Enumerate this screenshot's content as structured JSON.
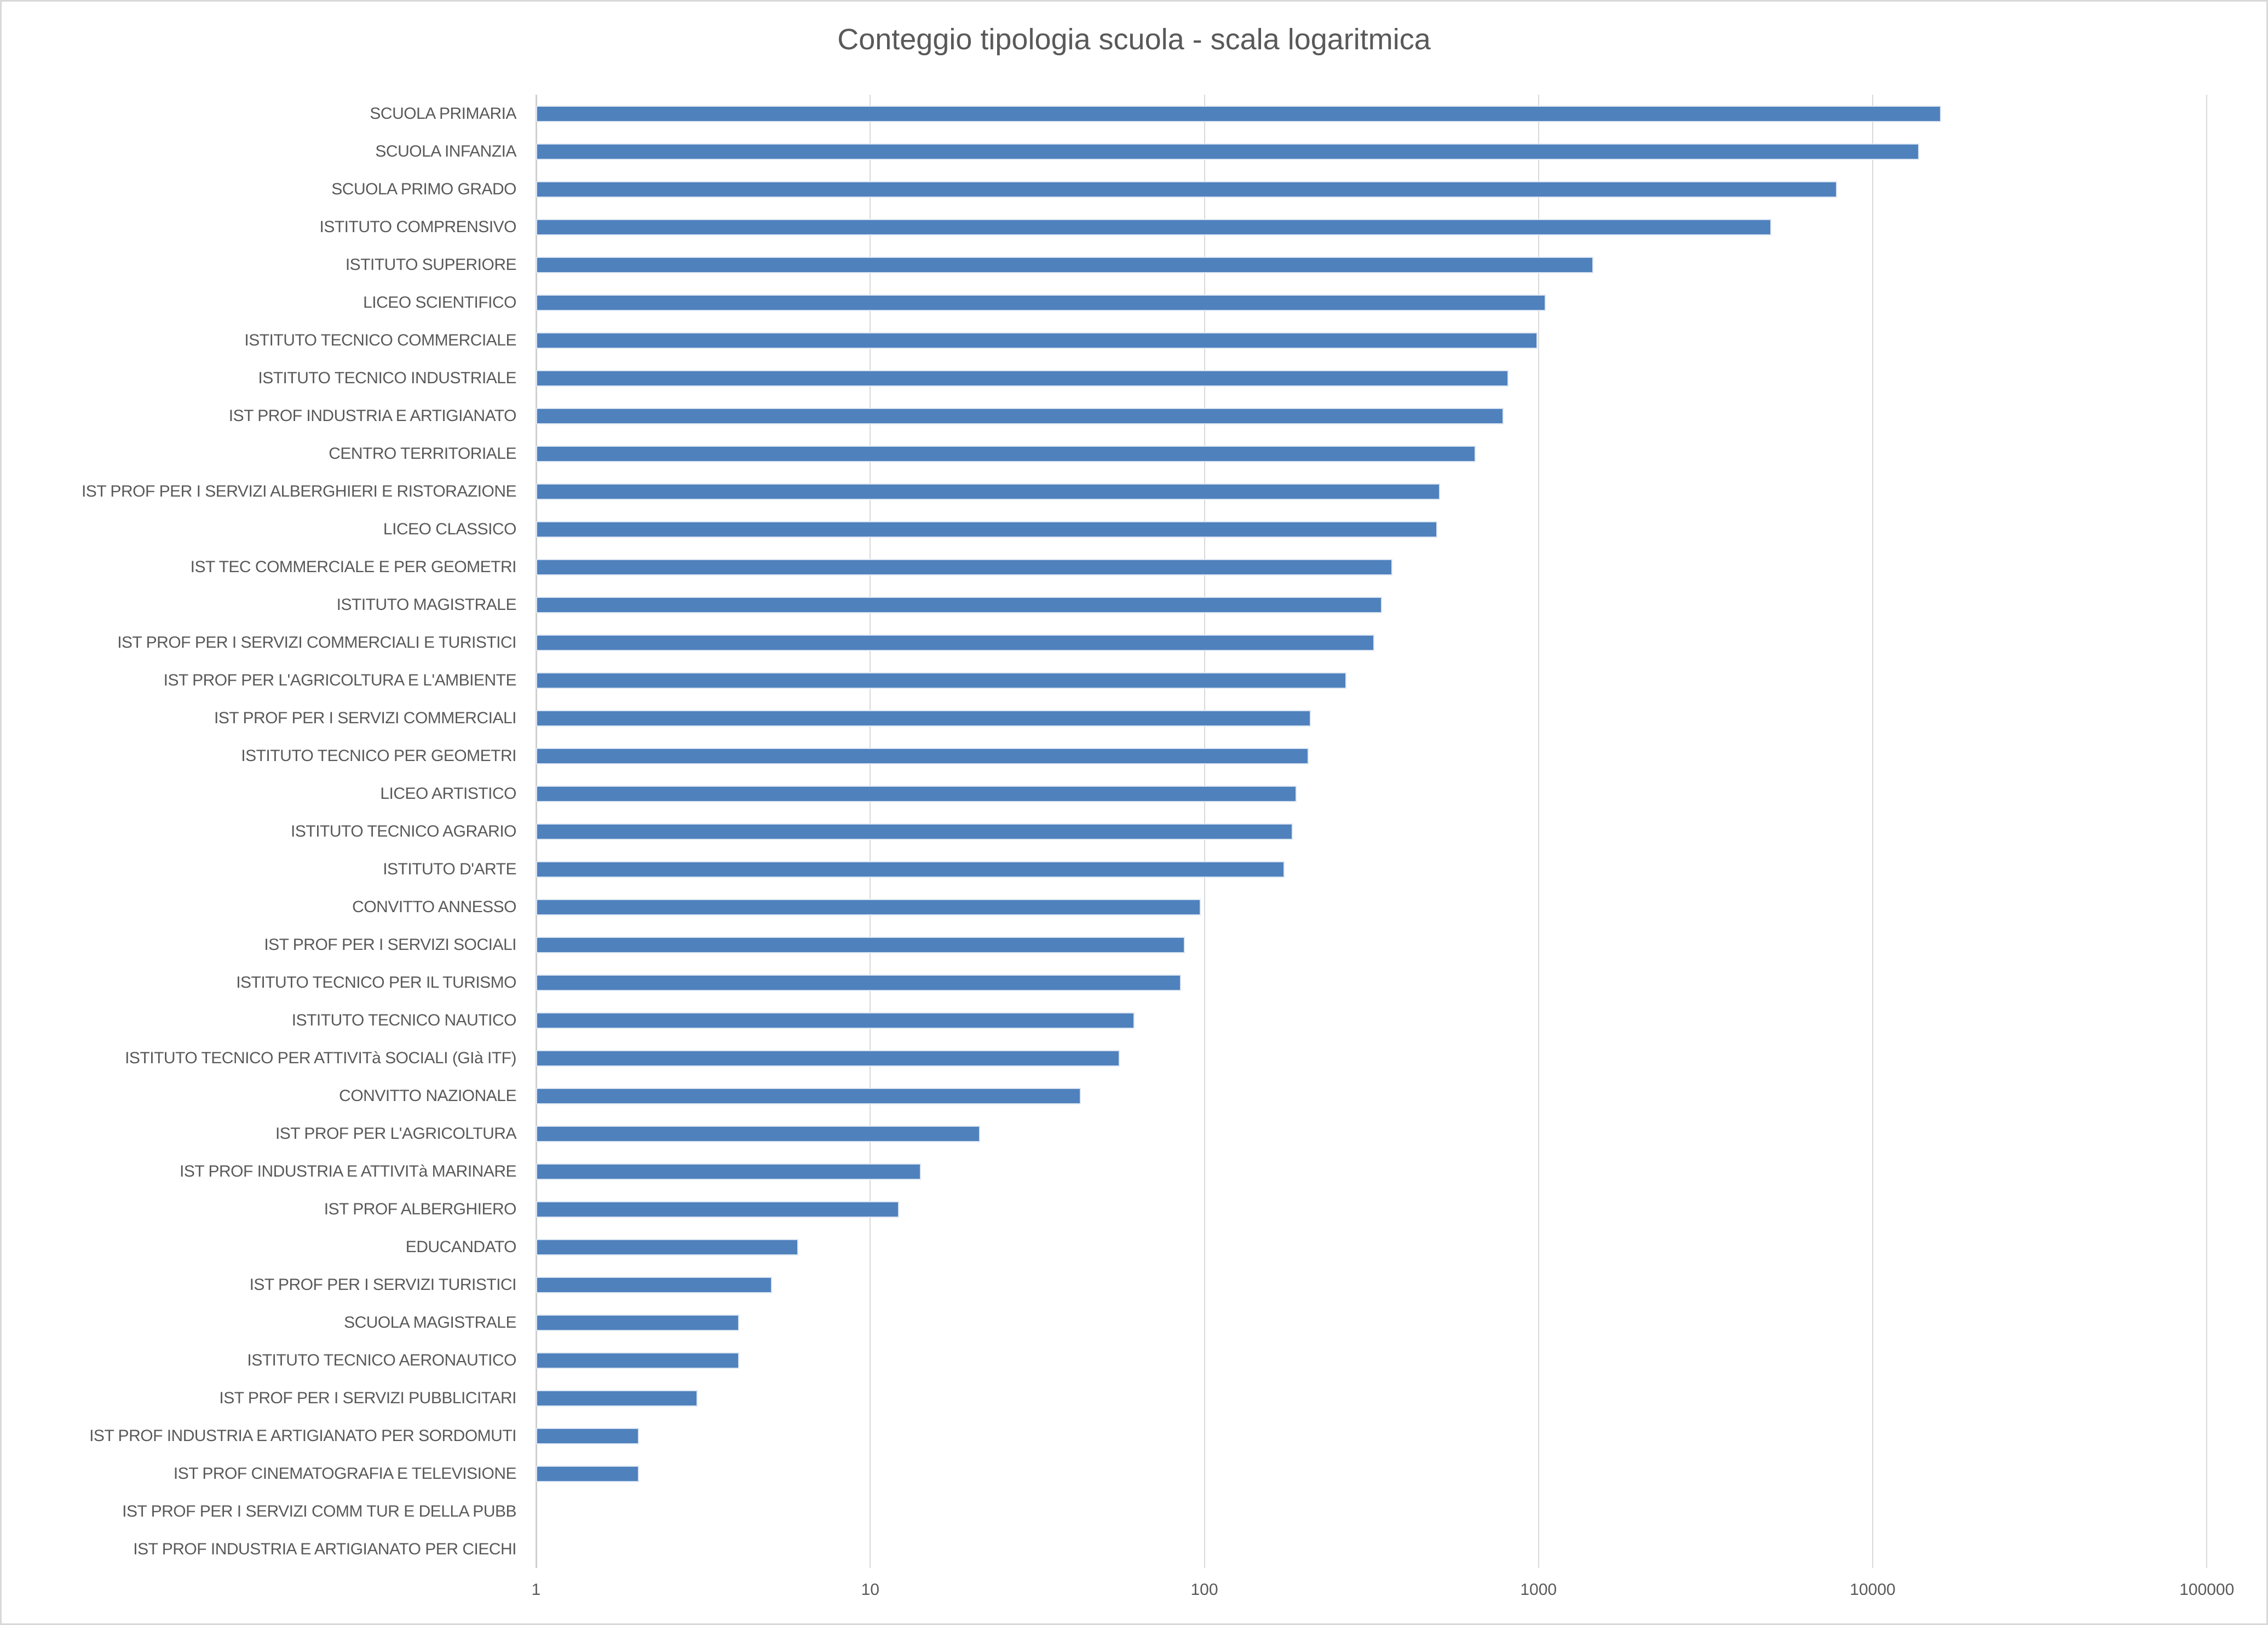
{
  "chart_data": {
    "type": "bar",
    "orientation": "horizontal",
    "title": "Conteggio tipologia scuola - scala logaritmica",
    "xlabel": "",
    "ylabel": "",
    "x_scale": "log",
    "xlim": [
      1,
      100000
    ],
    "x_ticks": [
      1,
      10,
      100,
      1000,
      10000,
      100000
    ],
    "x_tick_labels": [
      "1",
      "10",
      "100",
      "1000",
      "10000",
      "100000"
    ],
    "grid": "vertical-gridlines-on",
    "legend": "none",
    "bar_color": "#4f81bd",
    "bar_border_color": "#dce6f2",
    "gridline_color": "#d9d9d9",
    "text_color": "#595959",
    "categories": [
      "SCUOLA PRIMARIA",
      "SCUOLA INFANZIA",
      "SCUOLA PRIMO GRADO",
      "ISTITUTO COMPRENSIVO",
      "ISTITUTO SUPERIORE",
      "LICEO SCIENTIFICO",
      "ISTITUTO TECNICO COMMERCIALE",
      "ISTITUTO TECNICO INDUSTRIALE",
      "IST PROF INDUSTRIA E ARTIGIANATO",
      "CENTRO TERRITORIALE",
      "IST PROF PER I SERVIZI ALBERGHIERI E RISTORAZIONE",
      "LICEO CLASSICO",
      "IST TEC COMMERCIALE E PER GEOMETRI",
      "ISTITUTO MAGISTRALE",
      "IST PROF PER I SERVIZI COMMERCIALI E TURISTICI",
      "IST PROF PER L'AGRICOLTURA E L'AMBIENTE",
      "IST PROF PER I SERVIZI COMMERCIALI",
      "ISTITUTO TECNICO PER GEOMETRI",
      "LICEO ARTISTICO",
      "ISTITUTO TECNICO AGRARIO",
      "ISTITUTO D'ARTE",
      "CONVITTO ANNESSO",
      "IST PROF PER I SERVIZI SOCIALI",
      "ISTITUTO TECNICO PER IL TURISMO",
      "ISTITUTO TECNICO NAUTICO",
      "ISTITUTO TECNICO PER ATTIVITà SOCIALI (GIà ITF)",
      "CONVITTO NAZIONALE",
      "IST PROF PER L'AGRICOLTURA",
      "IST PROF INDUSTRIA E ATTIVITà MARINARE",
      "IST PROF ALBERGHIERO",
      "EDUCANDATO",
      "IST PROF PER I SERVIZI TURISTICI",
      "SCUOLA MAGISTRALE",
      "ISTITUTO TECNICO AERONAUTICO",
      "IST PROF PER I SERVIZI PUBBLICITARI",
      "IST PROF INDUSTRIA E ARTIGIANATO PER SORDOMUTI",
      "IST PROF CINEMATOGRAFIA E TELEVISIONE",
      "IST PROF PER I SERVIZI COMM TUR E DELLA PUBB",
      "IST PROF INDUSTRIA E ARTIGIANATO PER CIECHI"
    ],
    "values": [
      15800,
      13600,
      7700,
      4900,
      1440,
      1035,
      980,
      800,
      775,
      640,
      500,
      490,
      360,
      335,
      318,
      262,
      205,
      202,
      186,
      181,
      171,
      96,
      86,
      84,
      61,
      55,
      42,
      21,
      14,
      12,
      6,
      5,
      4,
      4,
      3,
      2,
      2,
      1,
      1
    ]
  }
}
